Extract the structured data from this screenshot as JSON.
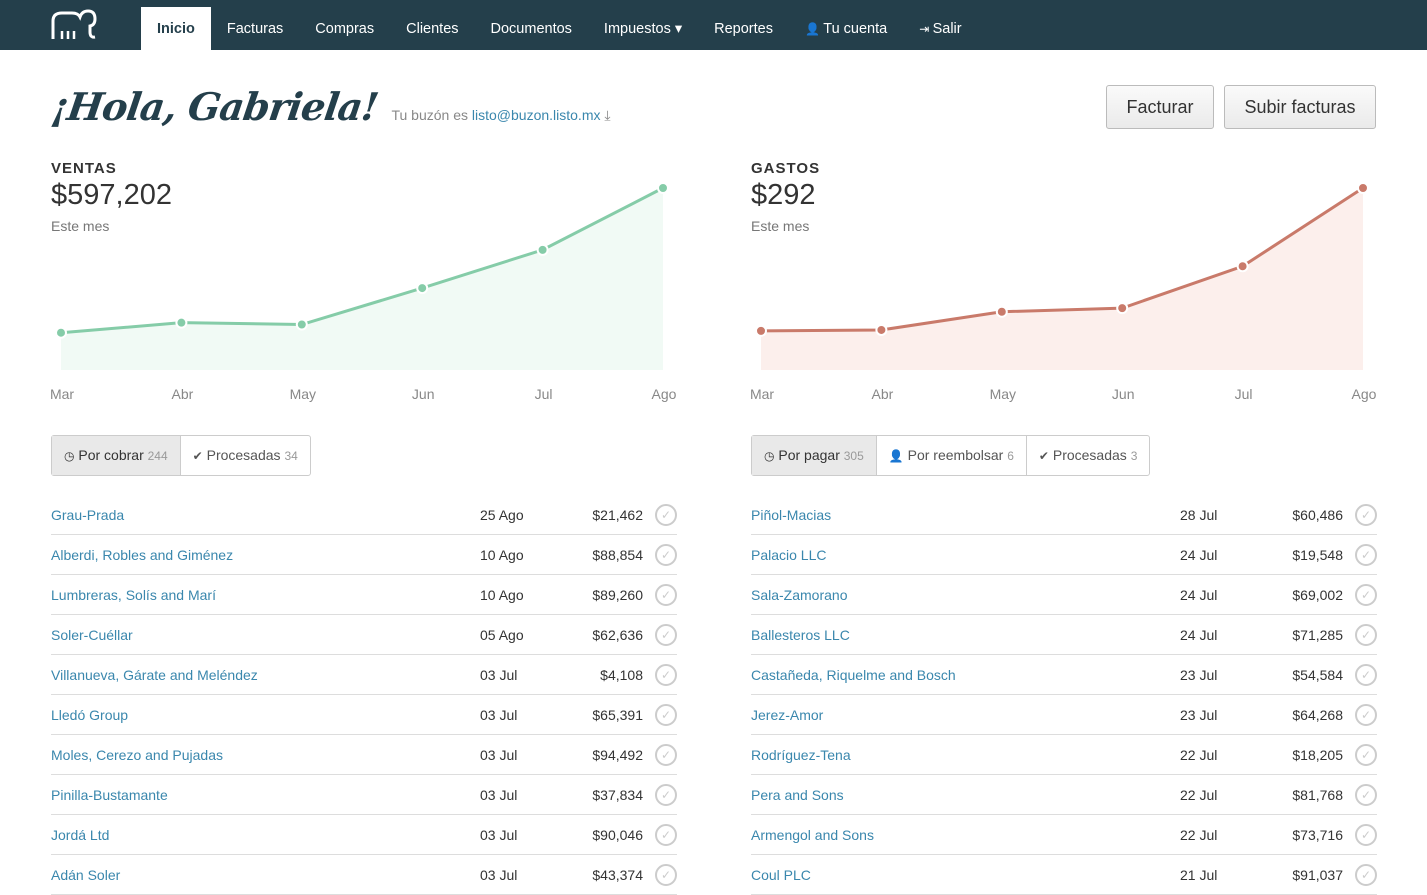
{
  "nav": {
    "items": [
      "Inicio",
      "Facturas",
      "Compras",
      "Clientes",
      "Documentos",
      "Impuestos ▾",
      "Reportes",
      "Tu cuenta",
      "Salir"
    ],
    "active": "Inicio"
  },
  "greeting": {
    "title": "¡Hola, Gabriela!",
    "mailbox_prefix": "Tu buzón es",
    "mailbox_email": "listo@buzon.listo.mx"
  },
  "buttons": {
    "facturar": "Facturar",
    "subir": "Subir facturas"
  },
  "colors": {
    "nav": "#243f4b",
    "ventas": "#85cca8",
    "gastos": "#c97a6a",
    "link": "#3a87ad"
  },
  "ventas": {
    "label": "VENTAS",
    "total": "$597,202",
    "period": "Este mes",
    "tabs": [
      {
        "icon": "clock-icon",
        "label": "Por cobrar",
        "count": "244"
      },
      {
        "icon": "check-icon",
        "label": "Procesadas",
        "count": "34"
      }
    ],
    "rows": [
      {
        "name": "Grau-Prada",
        "date": "25 Ago",
        "amount": "$21,462"
      },
      {
        "name": "Alberdi, Robles and Giménez",
        "date": "10 Ago",
        "amount": "$88,854"
      },
      {
        "name": "Lumbreras, Solís and Marí",
        "date": "10 Ago",
        "amount": "$89,260"
      },
      {
        "name": "Soler-Cuéllar",
        "date": "05 Ago",
        "amount": "$62,636"
      },
      {
        "name": "Villanueva, Gárate and Meléndez",
        "date": "03 Jul",
        "amount": "$4,108"
      },
      {
        "name": "Lledó Group",
        "date": "03 Jul",
        "amount": "$65,391"
      },
      {
        "name": "Moles, Cerezo and Pujadas",
        "date": "03 Jul",
        "amount": "$94,492"
      },
      {
        "name": "Pinilla-Bustamante",
        "date": "03 Jul",
        "amount": "$37,834"
      },
      {
        "name": "Jordá Ltd",
        "date": "03 Jul",
        "amount": "$90,046"
      },
      {
        "name": "Adán Soler",
        "date": "03 Jul",
        "amount": "$43,374"
      }
    ]
  },
  "gastos": {
    "label": "GASTOS",
    "total": "$292",
    "period": "Este mes",
    "tabs": [
      {
        "icon": "clock-icon",
        "label": "Por pagar",
        "count": "305"
      },
      {
        "icon": "user-icon",
        "label": "Por reembolsar",
        "count": "6"
      },
      {
        "icon": "check-icon",
        "label": "Procesadas",
        "count": "3"
      }
    ],
    "rows": [
      {
        "name": "Piñol-Macias",
        "date": "28 Jul",
        "amount": "$60,486"
      },
      {
        "name": "Palacio LLC",
        "date": "24 Jul",
        "amount": "$19,548"
      },
      {
        "name": "Sala-Zamorano",
        "date": "24 Jul",
        "amount": "$69,002"
      },
      {
        "name": "Ballesteros LLC",
        "date": "24 Jul",
        "amount": "$71,285"
      },
      {
        "name": "Castañeda, Riquelme and Bosch",
        "date": "23 Jul",
        "amount": "$54,584"
      },
      {
        "name": "Jerez-Amor",
        "date": "23 Jul",
        "amount": "$64,268"
      },
      {
        "name": "Rodríguez-Tena",
        "date": "22 Jul",
        "amount": "$18,205"
      },
      {
        "name": "Pera and Sons",
        "date": "22 Jul",
        "amount": "$81,768"
      },
      {
        "name": "Armengol and Sons",
        "date": "22 Jul",
        "amount": "$73,716"
      },
      {
        "name": "Coul PLC",
        "date": "21 Jul",
        "amount": "$91,037"
      }
    ]
  },
  "chart_data": [
    {
      "type": "area",
      "categories": [
        "Mar",
        "Abr",
        "May",
        "Jun",
        "Jul",
        "Ago"
      ],
      "values": [
        15,
        26,
        25,
        45,
        66,
        100
      ],
      "ylim": [
        0,
        100
      ],
      "grid": false
    },
    {
      "type": "area",
      "categories": [
        "Mar",
        "Abr",
        "May",
        "Jun",
        "Jul",
        "Ago"
      ],
      "values": [
        16,
        22,
        32,
        34,
        57,
        100
      ],
      "ylim": [
        0,
        100
      ],
      "grid": false
    }
  ]
}
